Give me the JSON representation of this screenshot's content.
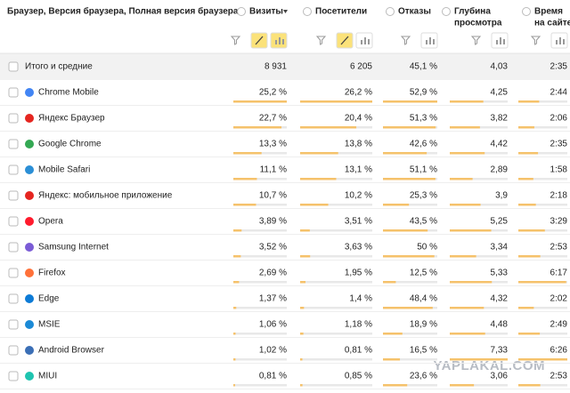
{
  "table": {
    "columns": [
      {
        "lines": [
          "Браузер, Версия браузера, Полная версия браузера"
        ]
      },
      {
        "lines": [
          "Визиты"
        ]
      },
      {
        "lines": [
          "Посетители"
        ]
      },
      {
        "lines": [
          "Отказы"
        ]
      },
      {
        "lines": [
          "Глубина",
          "просмотра"
        ]
      },
      {
        "lines": [
          "Время",
          "на сайте"
        ]
      }
    ],
    "totals": [
      "Итого и средние",
      "8 931",
      "6 205",
      "45,1 %",
      "4,03",
      "2:35"
    ],
    "rows": [
      [
        "Chrome Mobile",
        "25,2 %",
        "26,2 %",
        "52,9 %",
        "4,25",
        "2:44"
      ],
      [
        "Яндекс Браузер",
        "22,7 %",
        "20,4 %",
        "51,3 %",
        "3,82",
        "2:06"
      ],
      [
        "Google Chrome",
        "13,3 %",
        "13,8 %",
        "42,6 %",
        "4,42",
        "2:35"
      ],
      [
        "Mobile Safari",
        "11,1 %",
        "13,1 %",
        "51,1 %",
        "2,89",
        "1:58"
      ],
      [
        "Яндекс: мобильное приложение",
        "10,7 %",
        "10,2 %",
        "25,3 %",
        "3,9",
        "2:18"
      ],
      [
        "Opera",
        "3,89 %",
        "3,51 %",
        "43,5 %",
        "5,25",
        "3:29"
      ],
      [
        "Samsung Internet",
        "3,52 %",
        "3,63 %",
        "50 %",
        "3,34",
        "2:53"
      ],
      [
        "Firefox",
        "2,69 %",
        "1,95 %",
        "12,5 %",
        "5,33",
        "6:17"
      ],
      [
        "Edge",
        "1,37 %",
        "1,4 %",
        "48,4 %",
        "4,32",
        "2:02"
      ],
      [
        "MSIE",
        "1,06 %",
        "1,18 %",
        "18,9 %",
        "4,48",
        "2:49"
      ],
      [
        "Android Browser",
        "1,02 %",
        "0,81 %",
        "16,5 %",
        "7,33",
        "6:26"
      ],
      [
        "MIUI",
        "0,81 %",
        "0,85 %",
        "23,6 %",
        "3,06",
        "2:53"
      ]
    ]
  },
  "watermark": "YAPLAKAL.COM"
}
